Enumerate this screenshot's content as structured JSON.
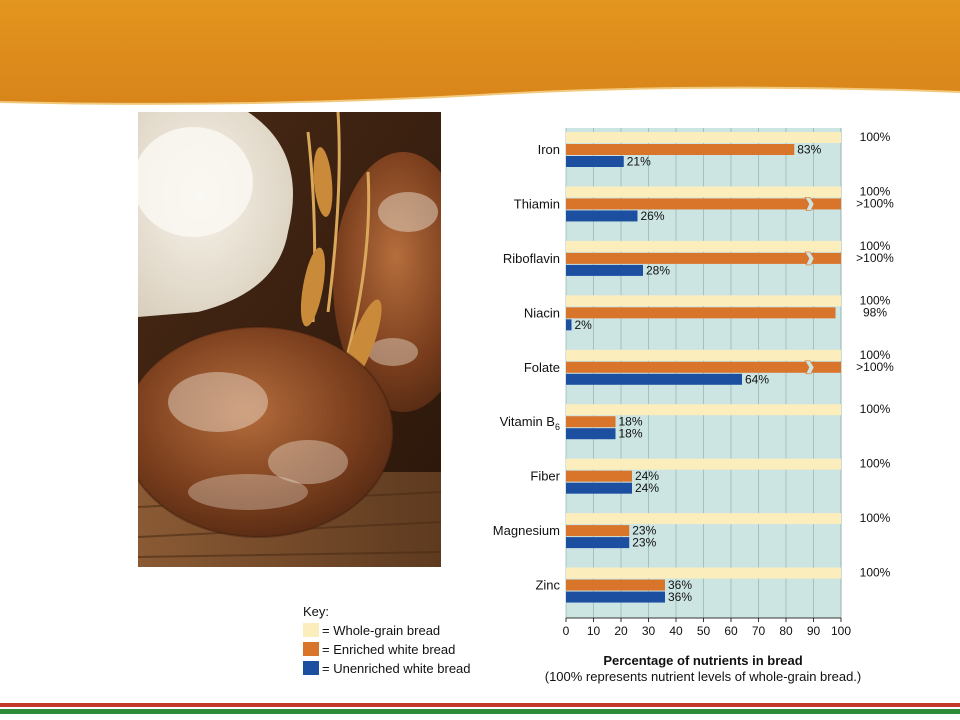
{
  "chart_data": {
    "type": "bar",
    "orientation": "horizontal",
    "categories": [
      "Iron",
      "Thiamin",
      "Riboflavin",
      "Niacin",
      "Folate",
      "Vitamin B6",
      "Fiber",
      "Magnesium",
      "Zinc"
    ],
    "series": [
      {
        "name": "Whole-grain bread",
        "color": "#fbeebc",
        "values": [
          100,
          100,
          100,
          100,
          100,
          100,
          100,
          100,
          100
        ],
        "labels": [
          "100%",
          "100%",
          "100%",
          "100%",
          "100%",
          "100%",
          "100%",
          "100%",
          "100%"
        ]
      },
      {
        "name": "Enriched white bread",
        "color": "#d9742b",
        "values": [
          83,
          100,
          100,
          98,
          100,
          18,
          24,
          23,
          36
        ],
        "exceeds_axis": [
          false,
          true,
          true,
          false,
          true,
          false,
          false,
          false,
          false
        ],
        "labels": [
          "83%",
          ">100%",
          ">100%",
          "98%",
          ">100%",
          "18%",
          "24%",
          "23%",
          "36%"
        ]
      },
      {
        "name": "Unenriched white bread",
        "color": "#1c4fa0",
        "values": [
          21,
          26,
          28,
          2,
          64,
          18,
          24,
          23,
          36
        ],
        "labels": [
          "21%",
          "26%",
          "28%",
          "2%",
          "64%",
          "18%",
          "24%",
          "23%",
          "36%"
        ]
      }
    ],
    "x_ticks": [
      "0",
      "10",
      "20",
      "30",
      "40",
      "50",
      "60",
      "70",
      "80",
      "90",
      "100"
    ],
    "xlim": [
      0,
      100
    ],
    "xlabel": "Percentage of nutrients in bread",
    "xlabel_note": "(100% represents nutrient levels of whole-grain bread.)",
    "plot_background": "#cce5e2",
    "grid": "vertical",
    "legend": {
      "title": "Key:",
      "placement": "bottom-left"
    }
  },
  "key": {
    "title": "Key:",
    "items": [
      {
        "label": "= Whole-grain bread",
        "color": "#fbeebc"
      },
      {
        "label": "= Enriched white bread",
        "color": "#d9742b"
      },
      {
        "label": "= Unenriched white bread",
        "color": "#1c4fa0"
      }
    ]
  },
  "theme": {
    "header_color": "#dc8b1a",
    "footer_red": "#c0392b",
    "footer_green": "#2e8b3a"
  },
  "image": {
    "description_icon": "bread-with-wheat-photo"
  }
}
